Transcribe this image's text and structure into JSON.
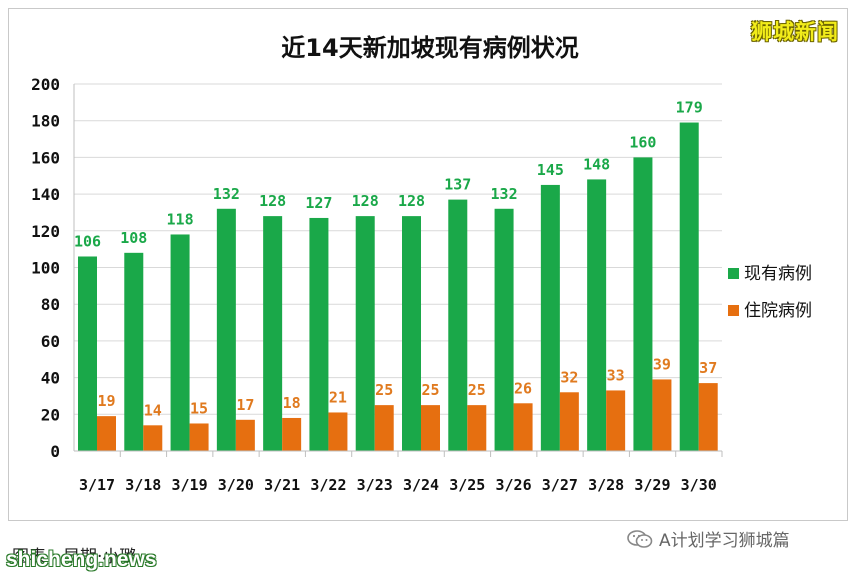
{
  "brand": "狮城新闻",
  "footer": {
    "credit": "图表：早期·小璐",
    "watermark": "shicheng.news",
    "account": "A计划学习狮城篇",
    "account_icon": "wechat-icon"
  },
  "colors": {
    "current": "#1aa849",
    "hospital": "#e66f10",
    "current_label": "#1aa849",
    "hospital_label": "#e07a1f"
  },
  "chart_data": {
    "type": "bar",
    "title": "近14天新加坡现有病例状况",
    "categories": [
      "3/17",
      "3/18",
      "3/19",
      "3/20",
      "3/21",
      "3/22",
      "3/23",
      "3/24",
      "3/25",
      "3/26",
      "3/27",
      "3/28",
      "3/29",
      "3/30"
    ],
    "series": [
      {
        "name": "现有病例",
        "values": [
          106,
          108,
          118,
          132,
          128,
          127,
          128,
          128,
          137,
          132,
          145,
          148,
          160,
          179
        ]
      },
      {
        "name": "住院病例",
        "values": [
          19,
          14,
          15,
          17,
          18,
          21,
          25,
          25,
          25,
          26,
          32,
          33,
          39,
          37
        ]
      }
    ],
    "ylim": [
      0,
      200
    ],
    "yticks": [
      0,
      20,
      40,
      60,
      80,
      100,
      120,
      140,
      160,
      180,
      200
    ],
    "grid": true,
    "legend": "right"
  }
}
